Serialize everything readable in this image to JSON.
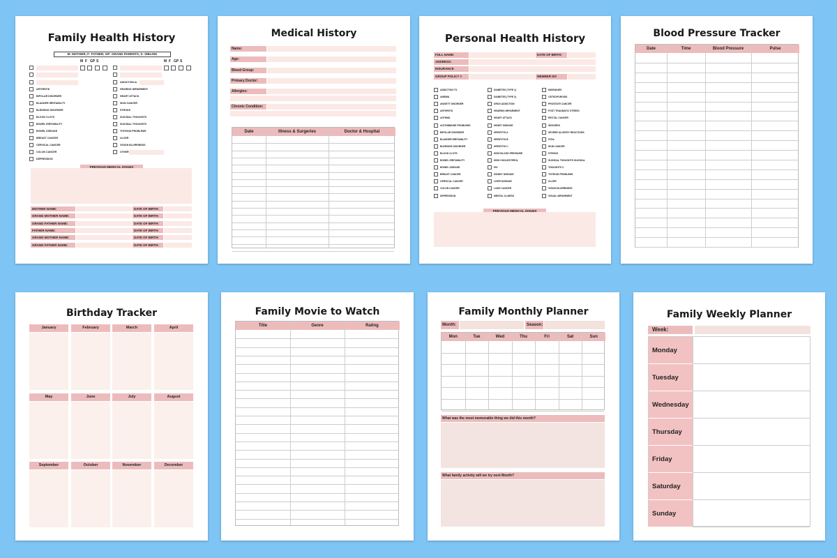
{
  "family_health": {
    "title": "Family Health History",
    "legend": "M- MOTHER, F- FATHER, GP- GRAND PARENTS, S- SIBLING",
    "col_heads": [
      "M",
      "F",
      "GP",
      "S"
    ],
    "left_items": [
      "ARTHRITIS",
      "BIPOLAR DISORDER",
      "BLADDER IRRITABILITY",
      "BLEEDING DISORDER",
      "BLOOD CLOTS",
      "BOWEL IRRITABILITY",
      "BOWEL DISEASE",
      "BREAST CANCER",
      "CERVICAL CANCER",
      "COLON CANCER",
      "DEPRESSION"
    ],
    "right_items": [
      "ADDICTION to",
      "HEARING IMPAIRMENT",
      "HEART ATTACK",
      "SKIN CANCER",
      "STROKE",
      "SUICIDAL THOUGHTS",
      "SUICIDAL THOUGHTS",
      "THYROID PROBLEMS",
      "ULCER",
      "VISION BLURRINESS",
      "OTHER"
    ],
    "prev_label": "PREVIOUS MEDICAL ISSUES",
    "names": [
      "MOTHER NAME:",
      "GRAND MOTHER NAME:",
      "GRAND FATHER NAME:",
      "FATHER NAME:",
      "GRAND MOTHER NAME:",
      "GRAND FATHER NAME:"
    ],
    "dob_label": "DATE OF BIRTH:"
  },
  "medical_history": {
    "title": "Medical History",
    "fields": [
      "Name:",
      "Age:",
      "Blood Group:",
      "Primary Doctor:",
      "Allergies:",
      "Chronic Condition:"
    ],
    "columns": [
      "Date",
      "Illness & Surgeries",
      "Doctor & Hospital"
    ]
  },
  "personal_health": {
    "title": "Personal Health History",
    "fields": {
      "full_name": "FULL NAME:",
      "dob": "DATE OF BIRTH:",
      "address": "ADDRESS:",
      "insurance": "INSURANCE",
      "policy": "GROUP POLICY #",
      "member": "MEMBER ID#"
    },
    "col1": [
      "ADDICTION TO",
      "ANEMIA",
      "ANXIETY DISORDER",
      "ARTHRITIS",
      "ASTHMA",
      "AUTOIMMUNE PROBLEMS",
      "BIPOLAR DISORDER",
      "BLADDER IRRITABILITY",
      "BLEEDING DISORDER",
      "BLOOD CLOTS",
      "BOWEL IRRITABILITY",
      "BOWEL DISEASE",
      "BREAST CANCER",
      "CERVICAL CANCER",
      "COLON CANCER",
      "DEPRESSION"
    ],
    "col2": [
      "DIABETES (TYPE 1)",
      "DIABETES (TYPE 2)",
      "DRUG ADDICTION",
      "HEARING IMPAIRMENT",
      "HEART ATTACK",
      "HEART DISEASE",
      "HEPATITIS A",
      "HEPATITIS B",
      "HEPATITIS C",
      "HIGH BLOOD PRESSURE",
      "HIGH CHOLESTEROL",
      "HIV",
      "KIDNEY DISEASE",
      "LIVER DISEASE",
      "LUNG CANCER",
      "MENTAL ILLNESS"
    ],
    "col3": [
      "MIGRAINES",
      "OSTEOPOROSIS",
      "PROSTATE CANCER",
      "POST TRAUMATIC STRESS",
      "RECTAL CANCER",
      "SEIZURES",
      "SEVERE ALLERGY REACTIONS",
      "STDs",
      "SKIN CANCER",
      "STROKE",
      "SUICIDAL THOUGHTS SUICIDAL",
      "THOUGHTS C",
      "THYROID PROBLEMS",
      "ULCER",
      "VISION BLURRINESS",
      "VISUAL IMPAIRMENT"
    ],
    "prev_label": "PREVIOUS MEDICAL ISSUES"
  },
  "blood_pressure": {
    "title": "Blood Pressure Tracker",
    "columns": [
      "Date",
      "Time",
      "Blood Pressure",
      "Pulse"
    ]
  },
  "birthday": {
    "title": "Birthday Tracker",
    "months": [
      "January",
      "February",
      "March",
      "April",
      "May",
      "June",
      "July",
      "August",
      "September",
      "October",
      "November",
      "December"
    ]
  },
  "movie": {
    "title": "Family Movie to Watch",
    "columns": [
      "Title",
      "Genre",
      "Rating"
    ]
  },
  "monthly": {
    "title": "Family Monthly Planner",
    "month_label": "Month:",
    "season_label": "Season:",
    "days": [
      "Mon",
      "Tue",
      "Wed",
      "Thu",
      "Fri",
      "Sat",
      "Sun"
    ],
    "q1": "What was the most memorable thing we did this month?",
    "q2": "What family activity will we try next Month?"
  },
  "weekly": {
    "title": "Family Weekly Planner",
    "week_label": "Week:",
    "days": [
      "Monday",
      "Tuesday",
      "Wednesday",
      "Thursday",
      "Friday",
      "Saturday",
      "Sunday"
    ]
  },
  "colors": {
    "background": "#7ec4f4",
    "pink": "#ecbcbc",
    "light_pink": "#fbe9e6"
  }
}
